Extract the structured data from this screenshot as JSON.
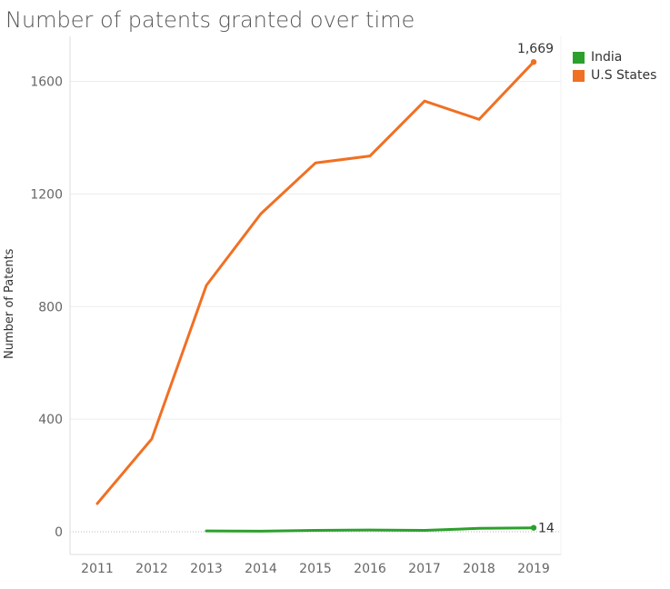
{
  "chart_data": {
    "type": "line",
    "title": "Number of patents granted over time",
    "ylabel": "Number of Patents",
    "xlabel": "",
    "categories": [
      "2011",
      "2012",
      "2013",
      "2014",
      "2015",
      "2016",
      "2017",
      "2018",
      "2019"
    ],
    "ylim": [
      0,
      1760
    ],
    "yticks": [
      0,
      400,
      800,
      1200,
      1600
    ],
    "grid": true,
    "legend_position": "top-right",
    "series": [
      {
        "name": "India",
        "color": "#2ca02c",
        "values": [
          null,
          null,
          3,
          2,
          5,
          6,
          5,
          12,
          14
        ],
        "end_label": "14"
      },
      {
        "name": "U.S States",
        "color": "#f07024",
        "values": [
          100,
          330,
          875,
          1130,
          1310,
          1335,
          1530,
          1465,
          1669
        ],
        "end_label": "1,669"
      }
    ]
  }
}
